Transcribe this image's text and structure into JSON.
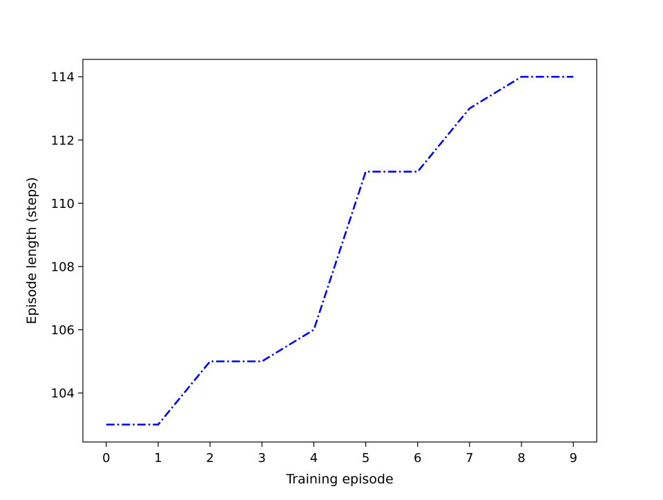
{
  "chart_data": {
    "type": "line",
    "title": "",
    "xlabel": "Training episode",
    "ylabel": "Episode length (steps)",
    "x": [
      0,
      1,
      2,
      3,
      4,
      5,
      6,
      7,
      8,
      9
    ],
    "series": [
      {
        "values": [
          103,
          103,
          105,
          105,
          106,
          111,
          111,
          113,
          114,
          114
        ],
        "color": "#0000ff",
        "line_style": "dashdot"
      }
    ],
    "xlim": [
      -0.45,
      9.45
    ],
    "ylim": [
      102.45,
      114.55
    ],
    "xticks": [
      0,
      1,
      2,
      3,
      4,
      5,
      6,
      7,
      8,
      9
    ],
    "yticks": [
      104,
      106,
      108,
      110,
      112,
      114
    ],
    "grid": false,
    "legend": "none"
  }
}
